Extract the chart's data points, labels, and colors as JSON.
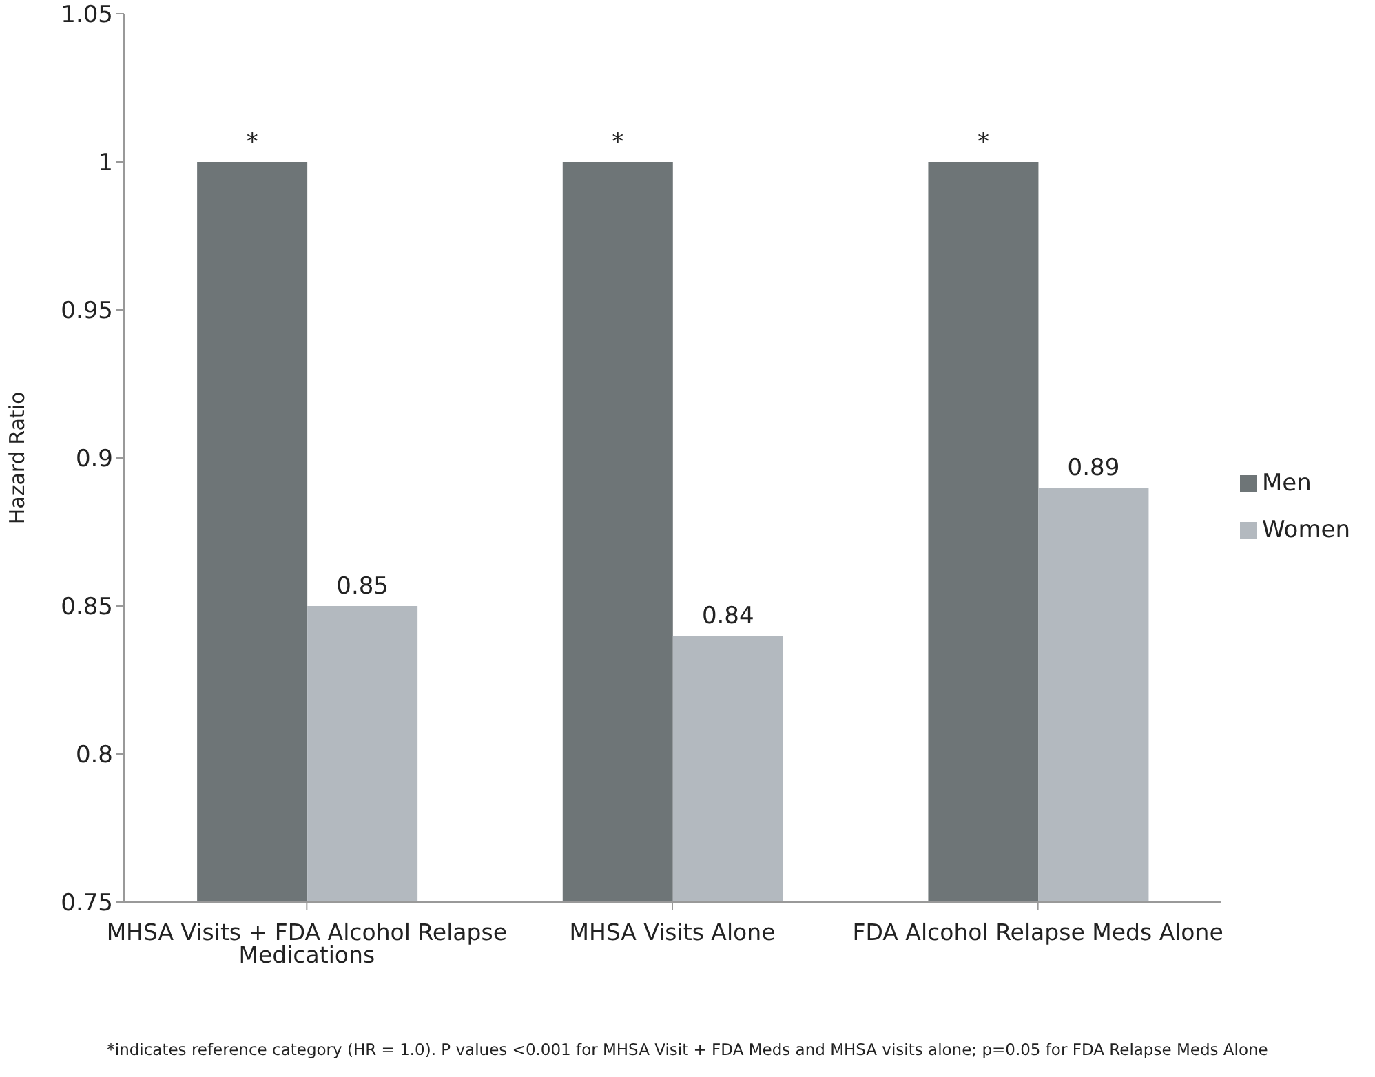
{
  "chart_data": {
    "type": "bar",
    "categories": [
      "MHSA Visits + FDA Alcohol Relapse Medications",
      "MHSA Visits Alone",
      "FDA Alcohol Relapse Meds Alone"
    ],
    "series": [
      {
        "name": "Men",
        "color": "#6e7577",
        "values": [
          1,
          1,
          1
        ],
        "value_labels": [
          "*",
          "*",
          "*"
        ]
      },
      {
        "name": "Women",
        "color": "#b3b9bf",
        "values": [
          0.85,
          0.84,
          0.89
        ],
        "value_labels": [
          "0.85",
          "0.84",
          "0.89"
        ]
      }
    ],
    "ylabel": "Hazard Ratio",
    "ylim": [
      0.75,
      1.05
    ],
    "yticks": [
      0.75,
      0.8,
      0.85,
      0.9,
      0.95,
      1,
      1.05
    ],
    "grid": false,
    "legend": "right",
    "annotations": [
      "*indicates reference category (HR = 1.0).  P values <0.001 for MHSA Visit + FDA Meds and MHSA visits alone; p=0.05 for FDA Relapse Meds Alone"
    ]
  }
}
